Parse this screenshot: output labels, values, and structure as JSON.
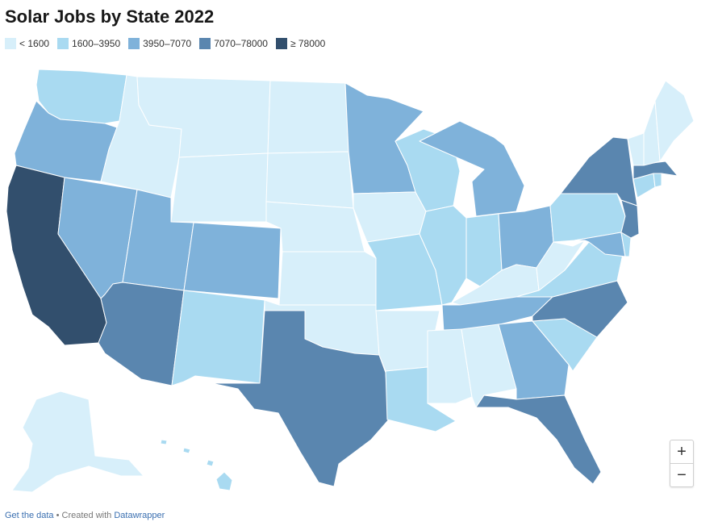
{
  "title": "Solar Jobs by State 2022",
  "legend": [
    {
      "label": "< 1600",
      "color": "#d7effa"
    },
    {
      "label": "1600–3950",
      "color": "#a9daf1"
    },
    {
      "label": "3950–7070",
      "color": "#7fb2da"
    },
    {
      "label": "7070–78000",
      "color": "#5a86af"
    },
    {
      "label": "≥ 78000",
      "color": "#324f6d"
    }
  ],
  "state_bins": {
    "WA": "1600–3950",
    "OR": "3950–7070",
    "CA": "≥ 78000",
    "ID": "< 1600",
    "NV": "3950–7070",
    "MT": "< 1600",
    "WY": "< 1600",
    "UT": "3950–7070",
    "AZ": "7070–78000",
    "CO": "3950–7070",
    "NM": "1600–3950",
    "ND": "< 1600",
    "SD": "< 1600",
    "NE": "< 1600",
    "KS": "< 1600",
    "OK": "< 1600",
    "TX": "7070–78000",
    "MN": "3950–7070",
    "IA": "< 1600",
    "MO": "1600–3950",
    "AR": "< 1600",
    "LA": "1600–3950",
    "WI": "1600–3950",
    "IL": "1600–3950",
    "MI": "3950–7070",
    "IN": "1600–3950",
    "OH": "3950–7070",
    "KY": "< 1600",
    "TN": "3950–7070",
    "MS": "< 1600",
    "AL": "< 1600",
    "GA": "3950–7070",
    "FL": "7070–78000",
    "SC": "1600–3950",
    "NC": "7070–78000",
    "VA": "1600–3950",
    "WV": "< 1600",
    "PA": "1600–3950",
    "NY": "7070–78000",
    "NJ": "7070–78000",
    "MD": "3950–7070",
    "DE": "1600–3950",
    "CT": "1600–3950",
    "RI": "1600–3950",
    "MA": "7070–78000",
    "VT": "< 1600",
    "NH": "< 1600",
    "ME": "< 1600",
    "AK": "< 1600",
    "HI": "1600–3950"
  },
  "zoom": {
    "in": "+",
    "out": "−"
  },
  "footer": {
    "get_data": "Get the data",
    "separator": " • Created with ",
    "credit": "Datawrapper"
  }
}
